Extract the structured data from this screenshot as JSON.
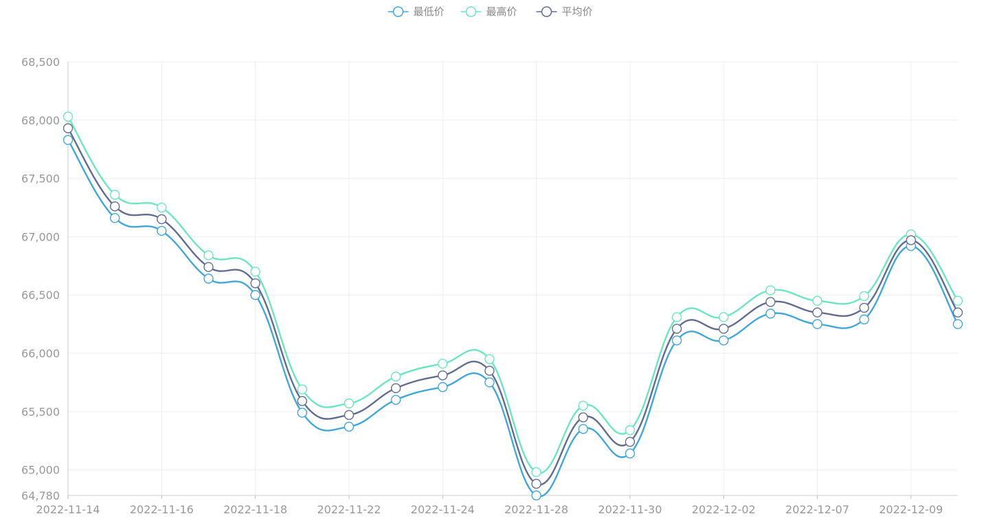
{
  "chart_data": {
    "type": "line",
    "smooth": true,
    "legend_position": "top-center",
    "grid": true,
    "x": [
      "2022-11-14",
      "2022-11-15",
      "2022-11-16",
      "2022-11-17",
      "2022-11-18",
      "2022-11-21",
      "2022-11-22",
      "2022-11-23",
      "2022-11-24",
      "2022-11-25",
      "2022-11-28",
      "2022-11-29",
      "2022-11-30",
      "2022-12-01",
      "2022-12-02",
      "2022-12-05",
      "2022-12-07",
      "2022-12-08",
      "2022-12-09",
      "2022-12-12"
    ],
    "x_tick_labels": [
      "2022-11-14",
      "2022-11-16",
      "2022-11-18",
      "2022-11-22",
      "2022-11-24",
      "2022-11-28",
      "2022-11-30",
      "2022-12-02",
      "2022-12-07",
      "2022-12-09"
    ],
    "ylim": [
      64780,
      68500
    ],
    "y_ticks": [
      64780,
      65000,
      65500,
      66000,
      66500,
      67000,
      67500,
      68000,
      68500
    ],
    "y_tick_labels": [
      "64,780",
      "65,000",
      "65,500",
      "66,000",
      "66,500",
      "67,000",
      "67,500",
      "68,000",
      "68,500"
    ],
    "series": [
      {
        "name": "最低价",
        "color": "#3fa7dc",
        "values": [
          67830,
          67160,
          67050,
          66640,
          66500,
          65490,
          65370,
          65600,
          65710,
          65750,
          64780,
          65350,
          65140,
          66110,
          66110,
          66340,
          66250,
          66290,
          66920,
          66250
        ]
      },
      {
        "name": "最高价",
        "color": "#6be6c1",
        "values": [
          68030,
          67360,
          67250,
          66840,
          66700,
          65690,
          65570,
          65800,
          65910,
          65950,
          64980,
          65550,
          65340,
          66310,
          66310,
          66540,
          66450,
          66490,
          67020,
          66450
        ]
      },
      {
        "name": "平均价",
        "color": "#626c91",
        "values": [
          67930,
          67260,
          67150,
          66740,
          66600,
          65590,
          65470,
          65700,
          65810,
          65850,
          64880,
          65450,
          65240,
          66210,
          66210,
          66440,
          66350,
          66390,
          66970,
          66350
        ]
      }
    ]
  }
}
